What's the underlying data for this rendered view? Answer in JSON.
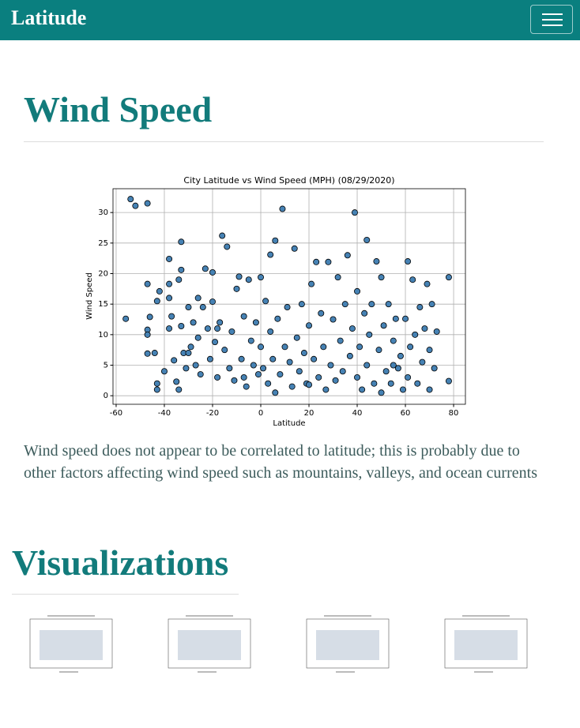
{
  "navbar": {
    "brand": "Latitude"
  },
  "heading": "Wind Speed",
  "chart_data": {
    "type": "scatter",
    "title": "City Latitude vs Wind Speed (MPH) (08/29/2020)",
    "x_label": "Latitude",
    "y_label": "Wind Speed",
    "color": "#4682b4",
    "edge_color": "#000000",
    "grid": true,
    "xlim": [
      -61.3,
      84.9
    ],
    "ylim": [
      -1.4,
      33.9
    ],
    "xticks": [
      -60,
      -40,
      -20,
      0,
      20,
      40,
      60,
      80
    ],
    "yticks": [
      0,
      5,
      10,
      15,
      20,
      25,
      30
    ],
    "x": [
      -56,
      -54,
      -52,
      -47,
      -47,
      -46,
      -47,
      -47,
      -47,
      -43,
      -42,
      -43,
      -43,
      -40,
      -38,
      -38,
      -38,
      -38,
      -36,
      -35,
      -34,
      -34,
      -33,
      -33,
      -33,
      -32,
      -31,
      -30,
      -29,
      -28,
      -27,
      -26,
      -25,
      -24,
      -23,
      -22,
      -21,
      -20,
      -20,
      -19,
      -18,
      -17,
      -16,
      -15,
      -14,
      -13,
      -12,
      -11,
      -10,
      -9,
      -8,
      -7,
      -6,
      -5,
      -4,
      -3,
      -2,
      -1,
      0,
      0,
      1,
      2,
      3,
      4,
      4,
      5,
      6,
      6,
      7,
      8,
      9,
      10,
      11,
      12,
      13,
      14,
      15,
      16,
      17,
      18,
      19,
      20,
      21,
      22,
      23,
      24,
      25,
      26,
      27,
      28,
      29,
      30,
      31,
      32,
      33,
      34,
      35,
      36,
      37,
      38,
      39,
      40,
      40,
      41,
      42,
      43,
      44,
      44,
      45,
      46,
      47,
      48,
      49,
      50,
      50,
      51,
      52,
      53,
      54,
      55,
      56,
      57,
      58,
      59,
      60,
      61,
      61,
      62,
      63,
      64,
      65,
      66,
      67,
      68,
      69,
      70,
      70,
      71,
      72,
      73,
      78,
      78,
      -44,
      -37,
      -30,
      -26,
      -18,
      -7,
      20,
      55
    ],
    "y": [
      12.6,
      32.2,
      31.1,
      31.5,
      18.3,
      12.9,
      10.8,
      6.9,
      10,
      15.5,
      17.1,
      1,
      2,
      4,
      22.4,
      18.3,
      11,
      16,
      5.8,
      2.3,
      1,
      19,
      25.2,
      20.6,
      11.4,
      7,
      4.5,
      14.5,
      8,
      12,
      5,
      9.5,
      3.5,
      14.5,
      20.8,
      11,
      6,
      20.2,
      15.4,
      8.8,
      3,
      12,
      26.2,
      7.5,
      24.4,
      4.5,
      10.5,
      2.5,
      17.5,
      19.5,
      6,
      13,
      1.5,
      19,
      9,
      5,
      12,
      3.5,
      19.4,
      8,
      4.5,
      15.5,
      2,
      23.1,
      10.5,
      6,
      25.4,
      0.5,
      12.6,
      3.5,
      30.6,
      8,
      14.5,
      5.5,
      1.5,
      24.1,
      9.5,
      4,
      15,
      7,
      2,
      11.5,
      18.3,
      6,
      21.9,
      3,
      13.5,
      8,
      1,
      21.9,
      5,
      12.5,
      2.5,
      19.4,
      9,
      4,
      15,
      23,
      6.5,
      11,
      30,
      3,
      17.1,
      8,
      1,
      13.5,
      25.5,
      5,
      10,
      15,
      2,
      22,
      7.5,
      19.4,
      0.5,
      11.5,
      4,
      15,
      2,
      9,
      12.6,
      4.5,
      6.5,
      1,
      12.6,
      22,
      3,
      8,
      19,
      10,
      2,
      14.5,
      5.5,
      11,
      18.3,
      1,
      7.5,
      15,
      4.5,
      10.5,
      19.4,
      2.4,
      7,
      13,
      7,
      16,
      11,
      3,
      1.8,
      5
    ]
  },
  "description": "Wind speed does not appear to be correlated to latitude; this is probably due to other factors affecting wind speed such as mountains, valleys, and ocean currents",
  "section_heading": "Visualizations"
}
